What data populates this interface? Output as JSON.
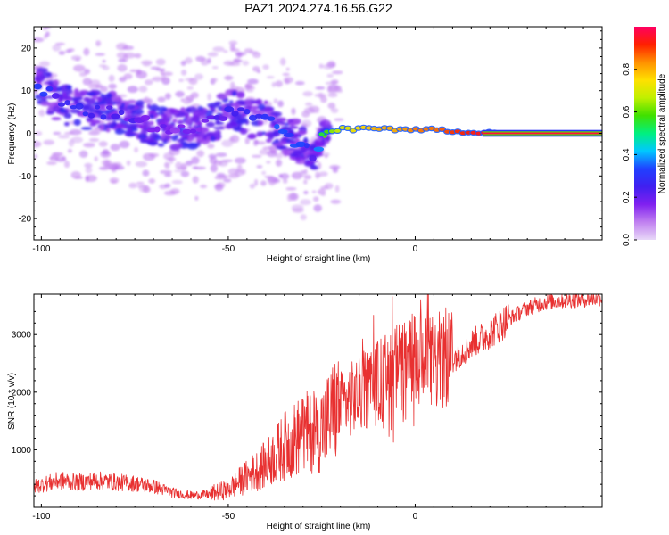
{
  "title": "PAZ1.2024.274.16.56.G22",
  "colors": {
    "snr_line": "#e83030",
    "axis": "#000000",
    "colorbar_stops": [
      "#e8d8f8",
      "#c080f0",
      "#8020f0",
      "#4020f0",
      "#2040ff",
      "#00c8ff",
      "#00f080",
      "#40e000",
      "#c0f000",
      "#ffe000",
      "#ff9000",
      "#ff2000",
      "#ff0060"
    ]
  },
  "chart_data": [
    {
      "type": "heatmap",
      "title": "PAZ1.2024.274.16.56.G22",
      "xlabel": "Height of straight line (km)",
      "ylabel": "Frequency (Hz)",
      "xlim": [
        -102,
        50
      ],
      "ylim": [
        -25,
        25
      ],
      "xticks": [
        -100,
        -50,
        0
      ],
      "yticks": [
        -20,
        -10,
        0,
        10,
        20
      ],
      "colorbar": {
        "label": "Normalized spectral amplitude",
        "range": [
          0,
          1
        ],
        "ticks": [
          "0.0",
          "0.2",
          "0.4",
          "0.6",
          "0.8"
        ],
        "tick_values": [
          0.0,
          0.2,
          0.4,
          0.6,
          0.8
        ]
      },
      "ridge": {
        "description_points_x": [
          -100,
          -95,
          -90,
          -85,
          -80,
          -75,
          -70,
          -65,
          -60,
          -55,
          -50,
          -45,
          -40,
          -35,
          -30,
          -27,
          -25,
          -20,
          -15,
          -10,
          -5,
          0,
          5,
          10,
          20,
          30,
          50
        ],
        "frequency": [
          11,
          7,
          6,
          5,
          5,
          3,
          2,
          1,
          1,
          2,
          6,
          4,
          3,
          0,
          -3,
          -6,
          0,
          1,
          1,
          1,
          1,
          1,
          1,
          0.5,
          0,
          0,
          0
        ],
        "amplitude": [
          0.3,
          0.25,
          0.25,
          0.25,
          0.22,
          0.2,
          0.18,
          0.18,
          0.18,
          0.2,
          0.25,
          0.3,
          0.3,
          0.32,
          0.3,
          0.2,
          0.55,
          0.7,
          0.75,
          0.8,
          0.8,
          0.85,
          0.85,
          0.9,
          0.95,
          1.0,
          1.0
        ]
      }
    },
    {
      "type": "line",
      "xlabel": "Height of straight line (km)",
      "ylabel": "SNR (10 * v/v)",
      "xlim": [
        -102,
        50
      ],
      "ylim": [
        0,
        3700
      ],
      "xticks": [
        -100,
        -50,
        0
      ],
      "yticks": [
        1000,
        2000,
        3000
      ],
      "series": [
        {
          "x": [
            -102,
            -95,
            -90,
            -85,
            -80,
            -75,
            -70,
            -65,
            -60,
            -55,
            -50,
            -45,
            -40,
            -35,
            -30,
            -25,
            -20,
            -15,
            -10,
            -5,
            0,
            5,
            10,
            15,
            20,
            25,
            30,
            35,
            40,
            45,
            50
          ],
          "y": [
            350,
            450,
            420,
            450,
            420,
            400,
            350,
            250,
            200,
            220,
            300,
            500,
            700,
            1000,
            1200,
            1300,
            1700,
            1900,
            2100,
            2300,
            2450,
            2400,
            2550,
            2800,
            3000,
            3250,
            3450,
            3550,
            3580,
            3600,
            3620
          ]
        }
      ]
    }
  ]
}
